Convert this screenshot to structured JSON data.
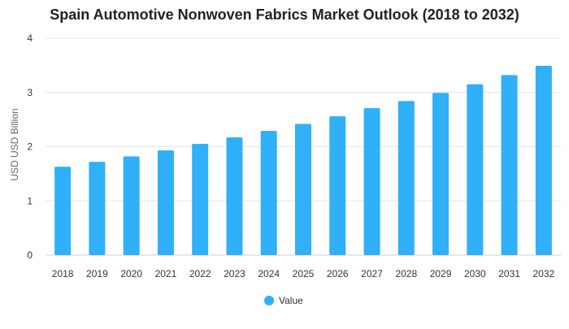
{
  "chart_data": {
    "type": "bar",
    "title": "Spain Automotive Nonwoven Fabrics Market Outlook (2018 to 2032)",
    "xlabel": "",
    "ylabel": "USD USD Billion",
    "categories": [
      "2018",
      "2019",
      "2020",
      "2021",
      "2022",
      "2023",
      "2024",
      "2025",
      "2026",
      "2027",
      "2028",
      "2029",
      "2030",
      "2031",
      "2032"
    ],
    "series": [
      {
        "name": "Value",
        "color": "#2fb0f8",
        "values": [
          1.63,
          1.72,
          1.82,
          1.93,
          2.05,
          2.17,
          2.29,
          2.42,
          2.56,
          2.71,
          2.84,
          2.99,
          3.15,
          3.32,
          3.49
        ]
      }
    ],
    "ylim": [
      0,
      4
    ],
    "yticks": [
      "0",
      "1",
      "2",
      "3",
      "4"
    ],
    "grid": true,
    "legend_position": "bottom-center"
  }
}
